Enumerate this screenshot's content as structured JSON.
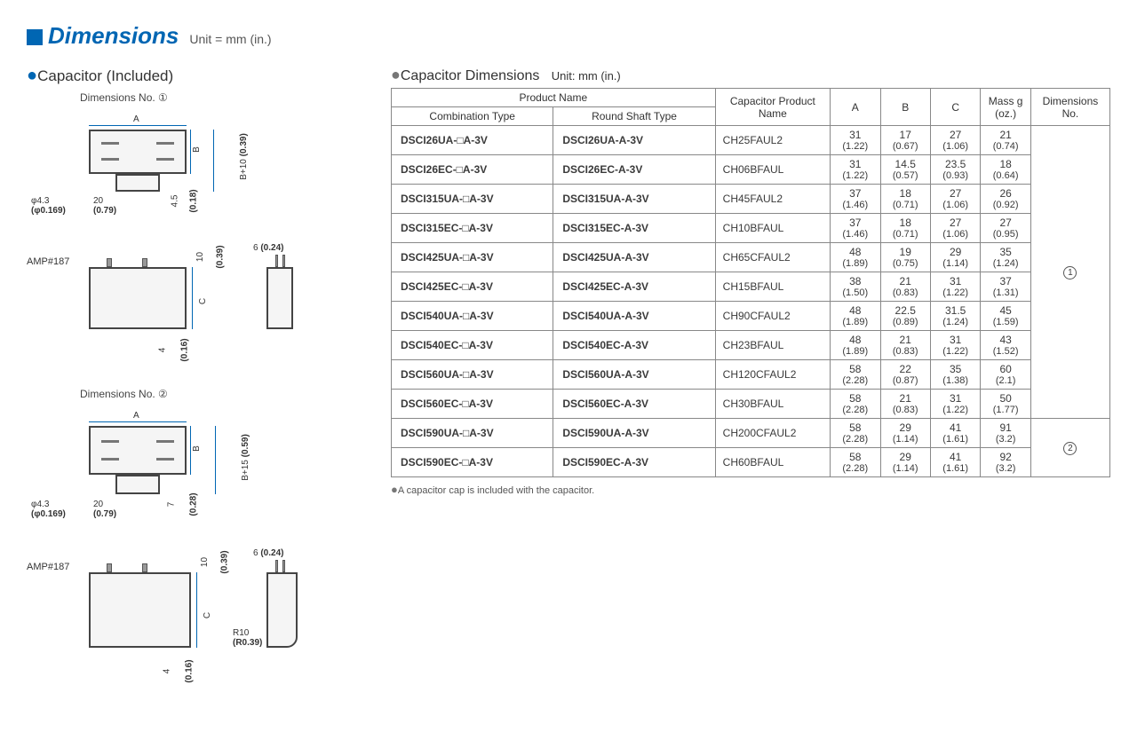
{
  "page": {
    "title": "Dimensions",
    "unit_label": "Unit = mm (in.)"
  },
  "left": {
    "heading": "Capacitor (Included)",
    "dim1_label": "Dimensions No. ①",
    "dim2_label": "Dimensions No. ②",
    "amp_label": "AMP#187",
    "A": "A",
    "B": "B",
    "C": "C",
    "phi43": "φ4.3",
    "phi0169": "(φ0.169)",
    "d20": "20",
    "d079": "(0.79)",
    "d45": "4.5",
    "d018": "(0.18)",
    "b10": "B+10",
    "b10i": "(0.39)",
    "d10": "10",
    "d039": "(0.39)",
    "d6": "6",
    "d024": "(0.24)",
    "d4": "4",
    "d016": "(0.16)",
    "d7": "7",
    "d028": "(0.28)",
    "b15": "B+15",
    "b15i": "(0.59)",
    "r10": "R10",
    "r039": "(R0.39)"
  },
  "right": {
    "table_title": "Capacitor Dimensions",
    "table_unit": "Unit: mm (in.)",
    "h_product": "Product Name",
    "h_combo": "Combination Type",
    "h_round": "Round Shaft Type",
    "h_cap": "Capacitor Product Name",
    "h_A": "A",
    "h_B": "B",
    "h_C": "C",
    "h_mass": "Mass g (oz.)",
    "h_dim": "Dimensions No.",
    "dim_no_1": "①",
    "dim_no_2": "②",
    "footnote": "A capacitor cap is included with the capacitor.",
    "rows": [
      {
        "c": "DSCI26UA-□A-3V",
        "r": "DSCI26UA-A-3V",
        "cap": "CH25FAUL2",
        "A": "31",
        "Ai": "(1.22)",
        "B": "17",
        "Bi": "(0.67)",
        "C": "27",
        "Ci": "(1.06)",
        "M": "21",
        "Mi": "(0.74)"
      },
      {
        "c": "DSCI26EC-□A-3V",
        "r": "DSCI26EC-A-3V",
        "cap": "CH06BFAUL",
        "A": "31",
        "Ai": "(1.22)",
        "B": "14.5",
        "Bi": "(0.57)",
        "C": "23.5",
        "Ci": "(0.93)",
        "M": "18",
        "Mi": "(0.64)"
      },
      {
        "c": "DSCI315UA-□A-3V",
        "r": "DSCI315UA-A-3V",
        "cap": "CH45FAUL2",
        "A": "37",
        "Ai": "(1.46)",
        "B": "18",
        "Bi": "(0.71)",
        "C": "27",
        "Ci": "(1.06)",
        "M": "26",
        "Mi": "(0.92)"
      },
      {
        "c": "DSCI315EC-□A-3V",
        "r": "DSCI315EC-A-3V",
        "cap": "CH10BFAUL",
        "A": "37",
        "Ai": "(1.46)",
        "B": "18",
        "Bi": "(0.71)",
        "C": "27",
        "Ci": "(1.06)",
        "M": "27",
        "Mi": "(0.95)"
      },
      {
        "c": "DSCI425UA-□A-3V",
        "r": "DSCI425UA-A-3V",
        "cap": "CH65CFAUL2",
        "A": "48",
        "Ai": "(1.89)",
        "B": "19",
        "Bi": "(0.75)",
        "C": "29",
        "Ci": "(1.14)",
        "M": "35",
        "Mi": "(1.24)"
      },
      {
        "c": "DSCI425EC-□A-3V",
        "r": "DSCI425EC-A-3V",
        "cap": "CH15BFAUL",
        "A": "38",
        "Ai": "(1.50)",
        "B": "21",
        "Bi": "(0.83)",
        "C": "31",
        "Ci": "(1.22)",
        "M": "37",
        "Mi": "(1.31)"
      },
      {
        "c": "DSCI540UA-□A-3V",
        "r": "DSCI540UA-A-3V",
        "cap": "CH90CFAUL2",
        "A": "48",
        "Ai": "(1.89)",
        "B": "22.5",
        "Bi": "(0.89)",
        "C": "31.5",
        "Ci": "(1.24)",
        "M": "45",
        "Mi": "(1.59)"
      },
      {
        "c": "DSCI540EC-□A-3V",
        "r": "DSCI540EC-A-3V",
        "cap": "CH23BFAUL",
        "A": "48",
        "Ai": "(1.89)",
        "B": "21",
        "Bi": "(0.83)",
        "C": "31",
        "Ci": "(1.22)",
        "M": "43",
        "Mi": "(1.52)"
      },
      {
        "c": "DSCI560UA-□A-3V",
        "r": "DSCI560UA-A-3V",
        "cap": "CH120CFAUL2",
        "A": "58",
        "Ai": "(2.28)",
        "B": "22",
        "Bi": "(0.87)",
        "C": "35",
        "Ci": "(1.38)",
        "M": "60",
        "Mi": "(2.1)"
      },
      {
        "c": "DSCI560EC-□A-3V",
        "r": "DSCI560EC-A-3V",
        "cap": "CH30BFAUL",
        "A": "58",
        "Ai": "(2.28)",
        "B": "21",
        "Bi": "(0.83)",
        "C": "31",
        "Ci": "(1.22)",
        "M": "50",
        "Mi": "(1.77)"
      },
      {
        "c": "DSCI590UA-□A-3V",
        "r": "DSCI590UA-A-3V",
        "cap": "CH200CFAUL2",
        "A": "58",
        "Ai": "(2.28)",
        "B": "29",
        "Bi": "(1.14)",
        "C": "41",
        "Ci": "(1.61)",
        "M": "91",
        "Mi": "(3.2)"
      },
      {
        "c": "DSCI590EC-□A-3V",
        "r": "DSCI590EC-A-3V",
        "cap": "CH60BFAUL",
        "A": "58",
        "Ai": "(2.28)",
        "B": "29",
        "Bi": "(1.14)",
        "C": "41",
        "Ci": "(1.61)",
        "M": "92",
        "Mi": "(3.2)"
      }
    ]
  }
}
